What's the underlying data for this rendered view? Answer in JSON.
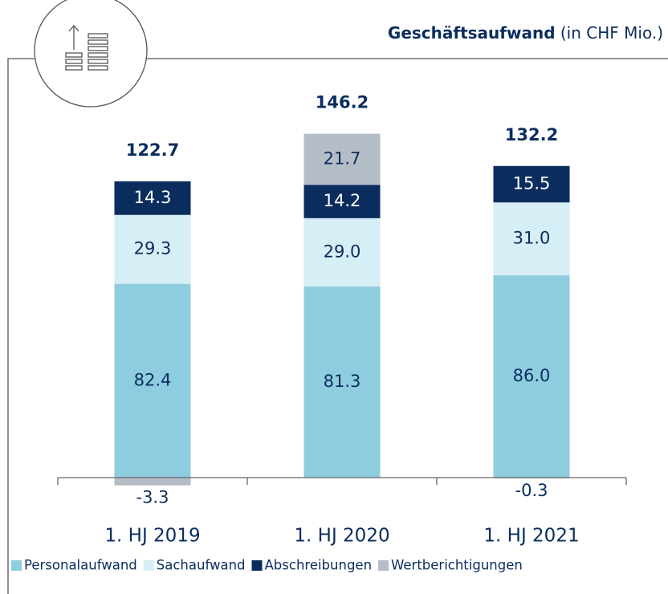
{
  "chart_data": {
    "type": "bar",
    "stacked": true,
    "title": "Geschäftsaufwand",
    "subtitle": "(in CHF Mio.)",
    "categories": [
      "1. HJ 2019",
      "1. HJ 2020",
      "1. HJ 2021"
    ],
    "series": [
      {
        "name": "Personalaufwand",
        "color": "#8ecde0",
        "values": [
          82.4,
          81.3,
          86.0
        ],
        "value_labels": [
          "82.4",
          "81.3",
          "86.0"
        ]
      },
      {
        "name": "Sachaufwand",
        "color": "#d6eef5",
        "values": [
          29.3,
          29.0,
          31.0
        ],
        "value_labels": [
          "29.3",
          "29.0",
          "31.0"
        ]
      },
      {
        "name": "Abschreibungen",
        "color": "#0b2d5e",
        "values": [
          14.3,
          14.2,
          15.5
        ],
        "value_labels": [
          "14.3",
          "14.2",
          "15.5"
        ]
      },
      {
        "name": "Wertberichtigungen",
        "color": "#b4bcc6",
        "values": [
          -3.3,
          21.7,
          -0.3
        ],
        "value_labels": [
          "-3.3",
          "21.7",
          "-0.3"
        ]
      }
    ],
    "totals": [
      122.7,
      146.2,
      132.2
    ]
  }
}
